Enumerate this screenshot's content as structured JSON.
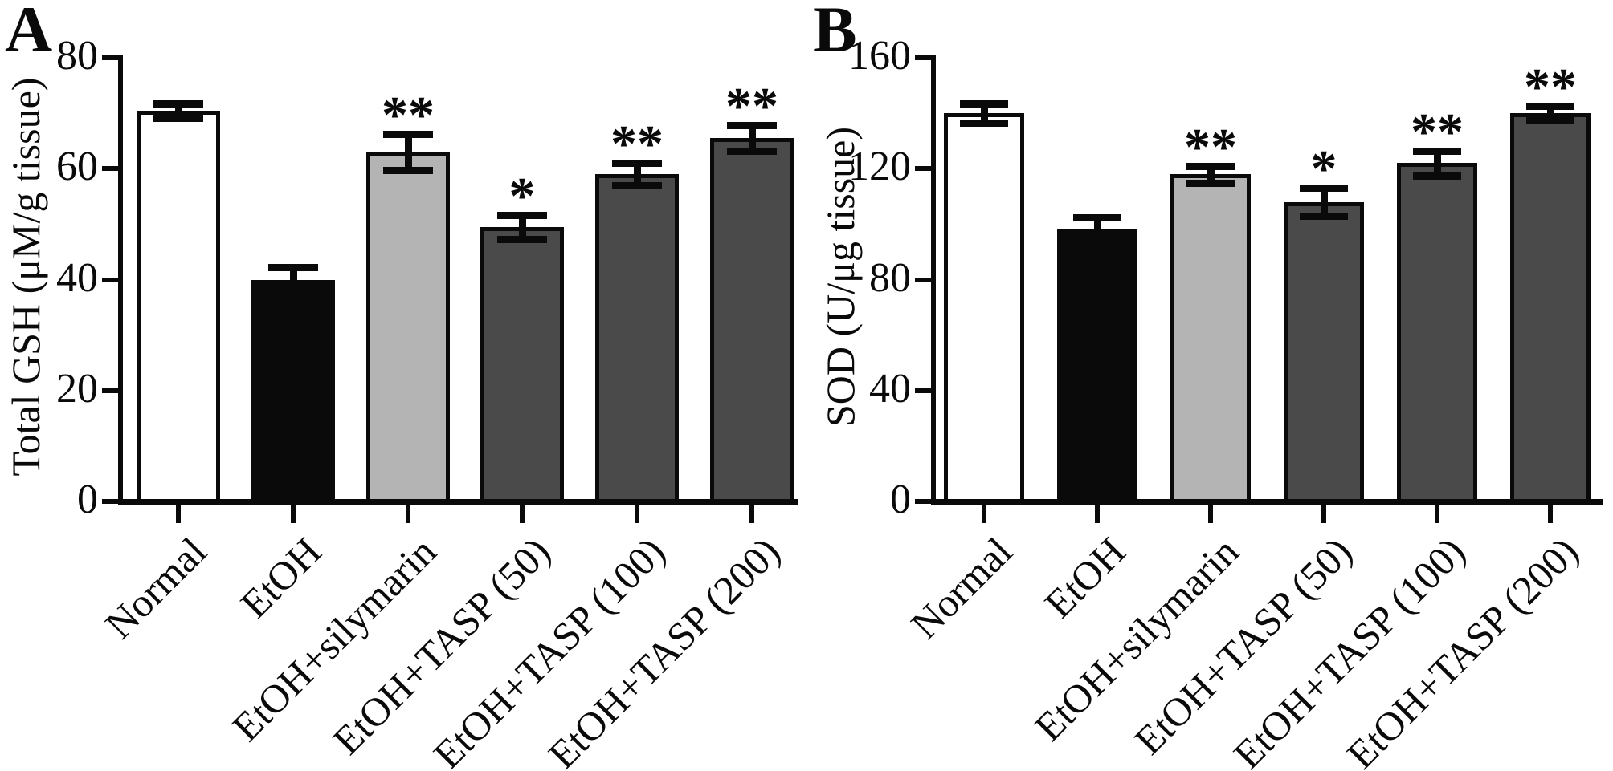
{
  "figure": {
    "background": "#ffffff",
    "ink_color": "#0a0a0a",
    "panel_letters": [
      "A",
      "B"
    ]
  },
  "chart_data": [
    {
      "type": "bar",
      "panel_label": "A",
      "title": "",
      "ylabel": "Total GSH (μM/g tissue)",
      "xlabel": "",
      "ylim": [
        0,
        80
      ],
      "yticks": [
        0,
        20,
        40,
        60,
        80
      ],
      "grid": false,
      "legend": null,
      "categories": [
        "Normal",
        "EtOH",
        "EtOH+silymarin",
        "EtOH+TASP (50)",
        "EtOH+TASP (100)",
        "EtOH+TASP (200)"
      ],
      "values": [
        70.5,
        40,
        63,
        49.5,
        59,
        65.5
      ],
      "errors": [
        1.3,
        2.2,
        3.2,
        2.2,
        2,
        2.3
      ],
      "significance": [
        "",
        "",
        "**",
        "*",
        "**",
        "**"
      ],
      "bar_colors": [
        "#ffffff",
        "#0a0a0a",
        "#b4b4b4",
        "#4a4a4a",
        "#4a4a4a",
        "#4a4a4a"
      ]
    },
    {
      "type": "bar",
      "panel_label": "B",
      "title": "",
      "ylabel": "SOD (U/μg tissue)",
      "xlabel": "",
      "ylim": [
        0,
        160
      ],
      "yticks": [
        0,
        40,
        80,
        120,
        160
      ],
      "grid": false,
      "legend": null,
      "categories": [
        "Normal",
        "EtOH",
        "EtOH+silymarin",
        "EtOH+TASP (50)",
        "EtOH+TASP (100)",
        "EtOH+TASP (200)"
      ],
      "values": [
        140,
        98,
        118,
        108,
        122,
        140
      ],
      "errors": [
        3.5,
        4.5,
        3,
        5,
        4.5,
        2.5
      ],
      "significance": [
        "",
        "",
        "**",
        "*",
        "**",
        "**"
      ],
      "bar_colors": [
        "#ffffff",
        "#0a0a0a",
        "#b4b4b4",
        "#4a4a4a",
        "#4a4a4a",
        "#4a4a4a"
      ]
    }
  ]
}
